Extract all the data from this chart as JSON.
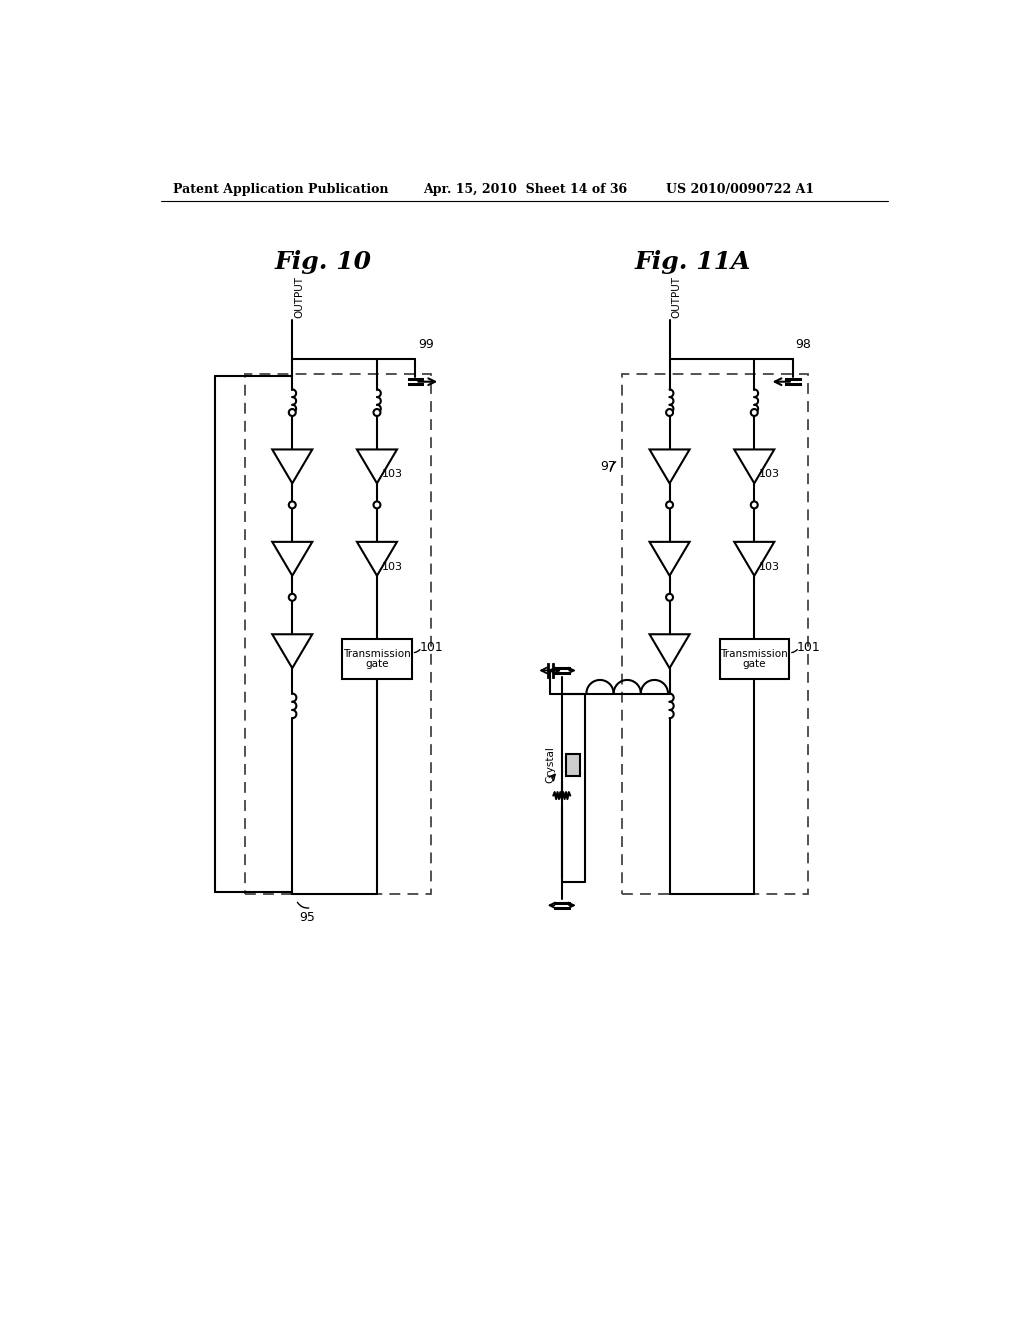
{
  "header_left": "Patent Application Publication",
  "header_mid": "Apr. 15, 2010  Sheet 14 of 36",
  "header_right": "US 2010/0090722 A1",
  "fig10_label": "Fig. 10",
  "fig11a_label": "Fig. 11A",
  "background_color": "#ffffff",
  "line_color": "#000000"
}
